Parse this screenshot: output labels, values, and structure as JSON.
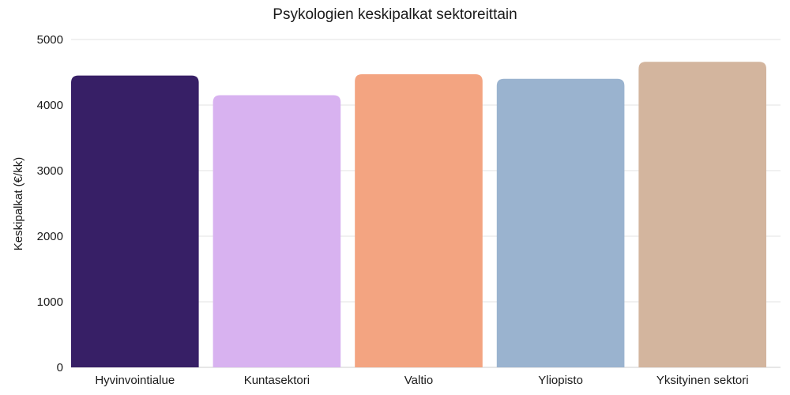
{
  "chart_data": {
    "type": "bar",
    "title": "Psykologien keskipalkat sektoreittain",
    "xlabel": "",
    "ylabel": "Keskipalkat (€/kk)",
    "categories": [
      "Hyvinvointialue",
      "Kuntasektori",
      "Valtio",
      "Yliopisto",
      "Yksityinen sektori"
    ],
    "values": [
      4450,
      4150,
      4470,
      4400,
      4660
    ],
    "colors": [
      "#371f66",
      "#d8b2f0",
      "#f3a481",
      "#9ab3cf",
      "#d3b59e"
    ],
    "ylim": [
      0,
      5000
    ],
    "yticks": [
      0,
      1000,
      2000,
      3000,
      4000,
      5000
    ],
    "grid": true,
    "legend": "none"
  }
}
